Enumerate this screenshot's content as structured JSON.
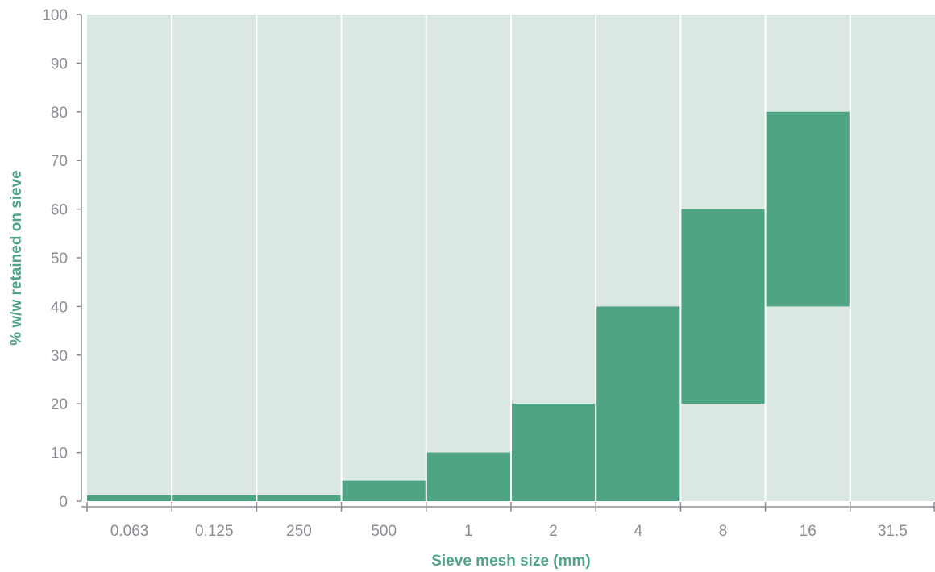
{
  "colors": {
    "plot_background": "#dbe7e2",
    "bar_fill": "#4fa583",
    "column_divider": "#ffffff",
    "axis": "#8a8d93",
    "axis_title": "#4fa583"
  },
  "chart_data": {
    "type": "bar",
    "title": "",
    "xlabel": "Sieve mesh size (mm)",
    "ylabel": "% w/w retained on sieve",
    "ylim": [
      0,
      100
    ],
    "yticks": [
      0,
      10,
      20,
      30,
      40,
      50,
      60,
      70,
      80,
      90,
      100
    ],
    "categories": [
      "0.063",
      "0.125",
      "250",
      "500",
      "1",
      "2",
      "4",
      "8",
      "16",
      "31.5"
    ],
    "bars": [
      {
        "category": "0.063",
        "low": 0,
        "high": 1.2
      },
      {
        "category": "0.125",
        "low": 0,
        "high": 1.2
      },
      {
        "category": "250",
        "low": 0,
        "high": 1.2
      },
      {
        "category": "500",
        "low": 0,
        "high": 4.2
      },
      {
        "category": "1",
        "low": 0,
        "high": 10
      },
      {
        "category": "2",
        "low": 0,
        "high": 20
      },
      {
        "category": "4",
        "low": 0,
        "high": 40
      },
      {
        "category": "8",
        "low": 20,
        "high": 60
      },
      {
        "category": "16",
        "low": 40,
        "high": 80
      },
      {
        "category": "31.5",
        "low": null,
        "high": null
      }
    ],
    "grid": false,
    "legend": "none"
  }
}
